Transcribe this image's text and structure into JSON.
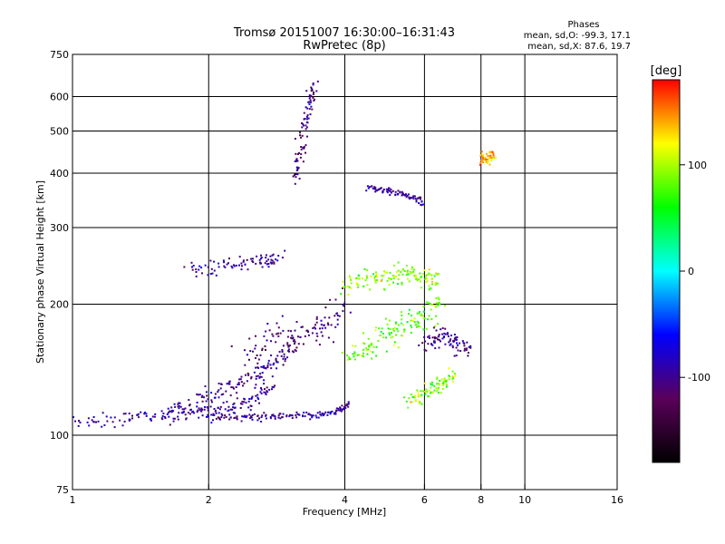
{
  "chart_data": {
    "type": "scatter",
    "title": "Tromsø 20151007 16:30:00–16:31:43",
    "subtitle": "RwPretec (8p)",
    "xlabel": "Frequency [MHz]",
    "ylabel": "Stationary phase Virtual Height [km]",
    "x_scale": "log",
    "y_scale": "log",
    "xlim": [
      1,
      16
    ],
    "ylim": [
      75,
      750
    ],
    "x_ticks": [
      1,
      2,
      4,
      6,
      8,
      10,
      16
    ],
    "x_tick_labels": [
      "1",
      "2",
      "4",
      "6",
      "8",
      "10",
      "16"
    ],
    "y_ticks": [
      75,
      100,
      200,
      300,
      400,
      500,
      600,
      750
    ],
    "y_tick_labels": [
      "75",
      "100",
      "200",
      "300",
      "400",
      "500",
      "600",
      "750"
    ],
    "grid": true,
    "phase_info": {
      "heading": "Phases",
      "line_o": "mean, sd,O: -99.3, 17.1",
      "line_x": "mean, sd,X:  87.6, 19.7"
    },
    "colorbar": {
      "label": "[deg]",
      "range": [
        -180,
        180
      ],
      "ticks": [
        100,
        0,
        -100
      ],
      "tick_labels": [
        "100",
        "0",
        "-100"
      ],
      "colors": [
        "#000000",
        "#5a005a",
        "#0000ff",
        "#00ffff",
        "#00ff00",
        "#ffff00",
        "#ff0000"
      ]
    },
    "traces": [
      {
        "f": [
          1.0,
          1.3,
          1.6,
          1.9,
          2.2,
          2.5,
          2.8
        ],
        "h": [
          107,
          109,
          111,
          113,
          115,
          121,
          133
        ],
        "phase": -95,
        "spread": 0.04
      },
      {
        "f": [
          1.6,
          1.9,
          2.2,
          2.5,
          2.8,
          3.1
        ],
        "h": [
          114,
          120,
          128,
          136,
          146,
          160
        ],
        "phase": -100,
        "spread": 0.05
      },
      {
        "f": [
          2.0,
          2.4,
          2.8,
          3.3,
          3.8,
          4.1
        ],
        "h": [
          110,
          110,
          110,
          111,
          113,
          118
        ],
        "phase": -95,
        "spread": 0.02
      },
      {
        "f": [
          3.1,
          3.2,
          3.3,
          3.4
        ],
        "h": [
          380,
          460,
          560,
          640
        ],
        "phase": -105,
        "spread": 0.04
      },
      {
        "f": [
          1.8,
          2.2,
          2.6,
          2.9
        ],
        "h": [
          240,
          245,
          250,
          255
        ],
        "phase": -95,
        "spread": 0.04
      },
      {
        "f": [
          2.4,
          2.8,
          3.2,
          3.6,
          4.0
        ],
        "h": [
          150,
          170,
          170,
          180,
          200
        ],
        "phase": -110,
        "spread": 0.08
      },
      {
        "f": [
          4.0,
          4.5,
          5.0,
          5.5,
          6.0,
          6.4
        ],
        "h": [
          220,
          228,
          230,
          235,
          232,
          230
        ],
        "phase": 90,
        "spread": 0.05
      },
      {
        "f": [
          4.0,
          4.5,
          5.0,
          5.5,
          6.0,
          6.5
        ],
        "h": [
          150,
          160,
          170,
          180,
          190,
          200
        ],
        "phase": 80,
        "spread": 0.07
      },
      {
        "f": [
          5.5,
          6.0,
          6.5,
          7.0
        ],
        "h": [
          120,
          125,
          130,
          140
        ],
        "phase": 90,
        "spread": 0.05
      },
      {
        "f": [
          4.5,
          5.0,
          5.5,
          6.0
        ],
        "h": [
          370,
          365,
          355,
          345
        ],
        "phase": -95,
        "spread": 0.02
      },
      {
        "f": [
          8.0,
          8.3,
          8.6
        ],
        "h": [
          430,
          435,
          440
        ],
        "phase": 140,
        "spread": 0.03
      },
      {
        "f": [
          6.0,
          6.5,
          7.0,
          7.5
        ],
        "h": [
          160,
          170,
          165,
          155
        ],
        "phase": -100,
        "spread": 0.05
      }
    ]
  }
}
